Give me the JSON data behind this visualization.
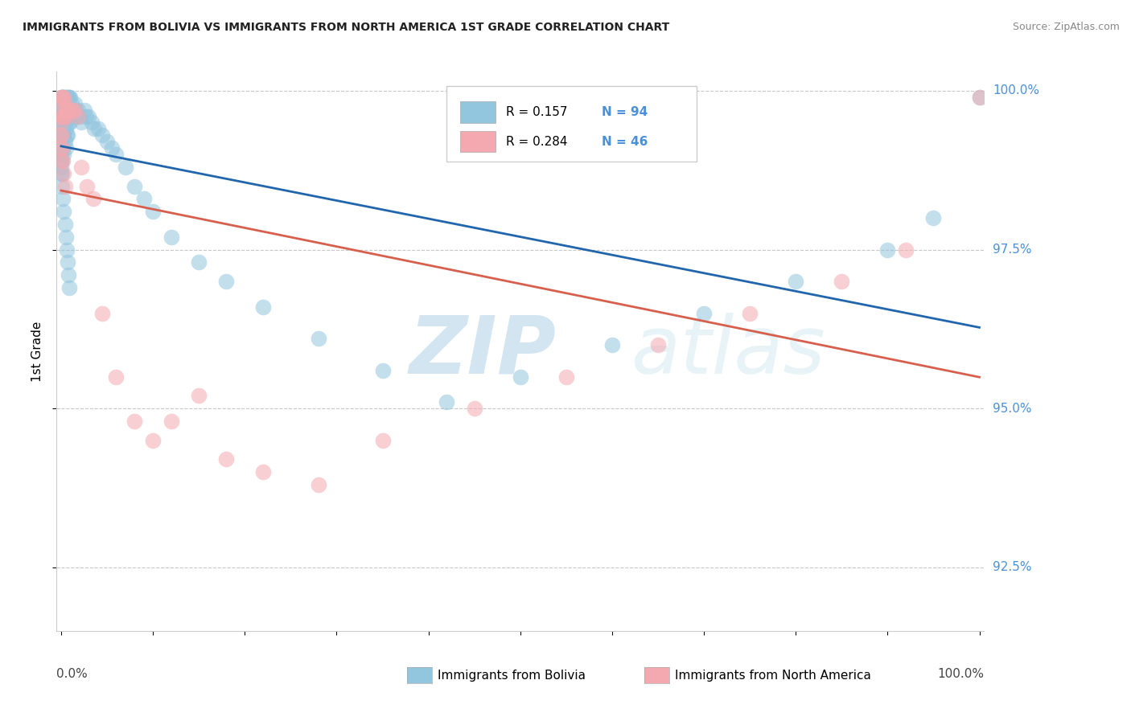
{
  "title": "IMMIGRANTS FROM BOLIVIA VS IMMIGRANTS FROM NORTH AMERICA 1ST GRADE CORRELATION CHART",
  "source": "Source: ZipAtlas.com",
  "ylabel": "1st Grade",
  "legend1_label": "Immigrants from Bolivia",
  "legend2_label": "Immigrants from North America",
  "R1": 0.157,
  "N1": 94,
  "R2": 0.284,
  "N2": 46,
  "color_bolivia": "#92c5de",
  "color_na": "#f4a9b0",
  "line_color_bolivia": "#2166ac",
  "line_color_na": "#d6604d",
  "ytick_color": "#4a90d9",
  "watermark_color": "#cce4f5",
  "grid_color": "#c8c8c8",
  "ylim_min": 0.915,
  "ylim_max": 1.003,
  "xlim_min": -0.005,
  "xlim_max": 1.005,
  "yticks": [
    0.925,
    0.95,
    0.975,
    1.0
  ],
  "ytick_labels": [
    "92.5%",
    "95.0%",
    "97.5%",
    "100.0%"
  ],
  "bolivia_x": [
    0.0,
    0.0,
    0.0,
    0.0,
    0.0,
    0.0,
    0.0,
    0.0,
    0.0,
    0.0,
    0.001,
    0.001,
    0.001,
    0.001,
    0.001,
    0.001,
    0.001,
    0.002,
    0.002,
    0.002,
    0.002,
    0.002,
    0.003,
    0.003,
    0.003,
    0.003,
    0.003,
    0.004,
    0.004,
    0.004,
    0.004,
    0.005,
    0.005,
    0.005,
    0.005,
    0.006,
    0.006,
    0.006,
    0.007,
    0.007,
    0.007,
    0.008,
    0.008,
    0.009,
    0.009,
    0.01,
    0.01,
    0.011,
    0.012,
    0.013,
    0.015,
    0.016,
    0.017,
    0.018,
    0.02,
    0.022,
    0.025,
    0.027,
    0.03,
    0.033,
    0.036,
    0.04,
    0.045,
    0.05,
    0.055,
    0.06,
    0.07,
    0.08,
    0.09,
    0.1,
    0.12,
    0.15,
    0.18,
    0.22,
    0.28,
    0.35,
    0.42,
    0.5,
    0.6,
    0.7,
    0.8,
    0.9,
    0.95,
    1.0,
    0.0,
    0.001,
    0.002,
    0.003,
    0.004,
    0.005,
    0.006,
    0.007,
    0.008,
    0.009
  ],
  "bolivia_y": [
    0.999,
    0.998,
    0.997,
    0.996,
    0.995,
    0.993,
    0.992,
    0.99,
    0.989,
    0.988,
    0.999,
    0.997,
    0.995,
    0.993,
    0.991,
    0.989,
    0.987,
    0.999,
    0.997,
    0.995,
    0.993,
    0.991,
    0.999,
    0.997,
    0.995,
    0.993,
    0.99,
    0.999,
    0.997,
    0.995,
    0.992,
    0.999,
    0.997,
    0.994,
    0.991,
    0.999,
    0.997,
    0.993,
    0.999,
    0.997,
    0.993,
    0.999,
    0.996,
    0.999,
    0.995,
    0.999,
    0.995,
    0.998,
    0.997,
    0.996,
    0.998,
    0.997,
    0.996,
    0.997,
    0.996,
    0.995,
    0.997,
    0.996,
    0.996,
    0.995,
    0.994,
    0.994,
    0.993,
    0.992,
    0.991,
    0.99,
    0.988,
    0.985,
    0.983,
    0.981,
    0.977,
    0.973,
    0.97,
    0.966,
    0.961,
    0.956,
    0.951,
    0.955,
    0.96,
    0.965,
    0.97,
    0.975,
    0.98,
    0.999,
    0.987,
    0.985,
    0.983,
    0.981,
    0.979,
    0.977,
    0.975,
    0.973,
    0.971,
    0.969
  ],
  "na_x": [
    0.0,
    0.0,
    0.0,
    0.0,
    0.0,
    0.0,
    0.001,
    0.001,
    0.002,
    0.002,
    0.003,
    0.003,
    0.004,
    0.005,
    0.006,
    0.007,
    0.008,
    0.01,
    0.012,
    0.015,
    0.018,
    0.022,
    0.028,
    0.035,
    0.045,
    0.06,
    0.08,
    0.1,
    0.12,
    0.15,
    0.18,
    0.22,
    0.28,
    0.35,
    0.45,
    0.55,
    0.65,
    0.75,
    0.85,
    0.92,
    1.0,
    0.0,
    0.001,
    0.002,
    0.003,
    0.004
  ],
  "na_y": [
    0.999,
    0.997,
    0.995,
    0.993,
    0.991,
    0.989,
    0.999,
    0.996,
    0.999,
    0.996,
    0.999,
    0.996,
    0.998,
    0.997,
    0.996,
    0.997,
    0.997,
    0.997,
    0.997,
    0.997,
    0.996,
    0.988,
    0.985,
    0.983,
    0.965,
    0.955,
    0.948,
    0.945,
    0.948,
    0.952,
    0.942,
    0.94,
    0.938,
    0.945,
    0.95,
    0.955,
    0.96,
    0.965,
    0.97,
    0.975,
    0.999,
    0.993,
    0.991,
    0.989,
    0.987,
    0.985
  ]
}
